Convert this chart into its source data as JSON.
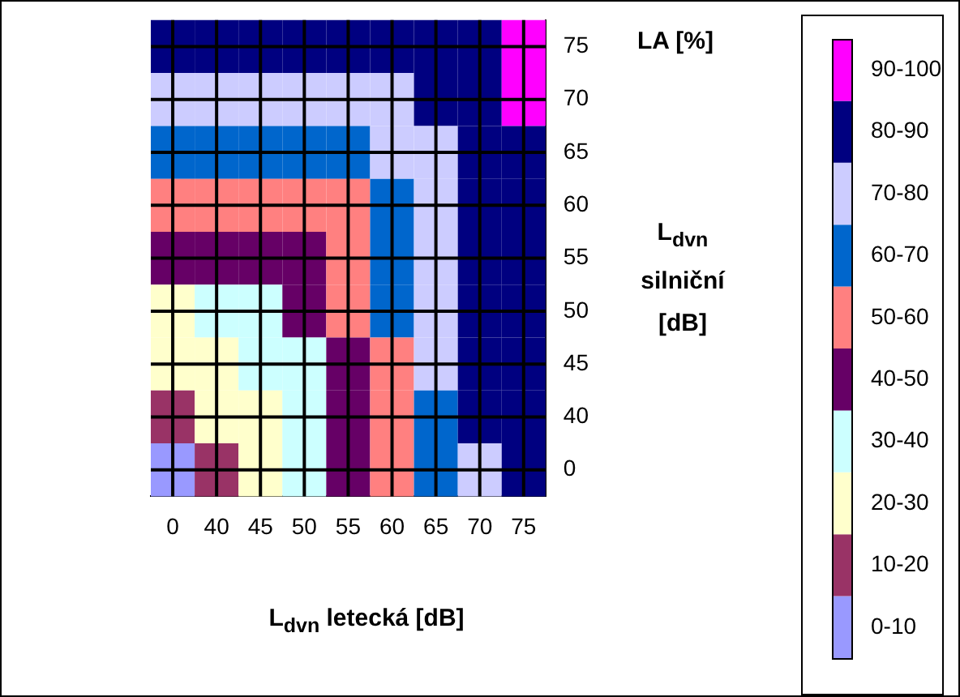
{
  "chart_data": {
    "type": "heatmap",
    "xlabel": "L$_{dvn}$ letecká [dB]",
    "ylabel": "L$_{dvn}$ silniční [dB]",
    "legend_title": "LA  [%]",
    "grid": true,
    "categories": [
      "0",
      "40",
      "45",
      "50",
      "55",
      "60",
      "65",
      "70",
      "75"
    ],
    "y_categories": [
      "75",
      "70",
      "65",
      "60",
      "55",
      "50",
      "45",
      "40",
      "0"
    ],
    "cells": [
      [
        80,
        80,
        80,
        80,
        80,
        81,
        82,
        85,
        92
      ],
      [
        70,
        70,
        70,
        72,
        74,
        77,
        82,
        86,
        90
      ],
      [
        60,
        60,
        60,
        62,
        65,
        70,
        77,
        83,
        88
      ],
      [
        50,
        50,
        51,
        54,
        58,
        63,
        73,
        82,
        86
      ],
      [
        40,
        43,
        46,
        48,
        53,
        60,
        72,
        81,
        85
      ],
      [
        28,
        30,
        35,
        40,
        50,
        62,
        71,
        81,
        85
      ],
      [
        20,
        25,
        30,
        38,
        48,
        58,
        70,
        80,
        84
      ],
      [
        15,
        20,
        28,
        37,
        47,
        57,
        69,
        80,
        84
      ],
      [
        8,
        14,
        25,
        36,
        46,
        56,
        68,
        79,
        84
      ]
    ],
    "clim": [
      0,
      100
    ],
    "cticks": [
      {
        "value": 5,
        "label": "0-10"
      },
      {
        "value": 15,
        "label": "10-20"
      },
      {
        "value": 25,
        "label": "20-30"
      },
      {
        "value": 35,
        "label": "30-40"
      },
      {
        "value": 45,
        "label": "40-50"
      },
      {
        "value": 55,
        "label": "50-60"
      },
      {
        "value": 65,
        "label": "60-70"
      },
      {
        "value": 75,
        "label": "70-80"
      },
      {
        "value": 85,
        "label": "80-90"
      },
      {
        "value": 95,
        "label": "90-100"
      }
    ],
    "colors": [
      "#9999ff",
      "#993366",
      "#ffffcc",
      "#ccffff",
      "#660066",
      "#ff8080",
      "#0066cc",
      "#ccccff",
      "#000080",
      "#ff00ff"
    ]
  }
}
